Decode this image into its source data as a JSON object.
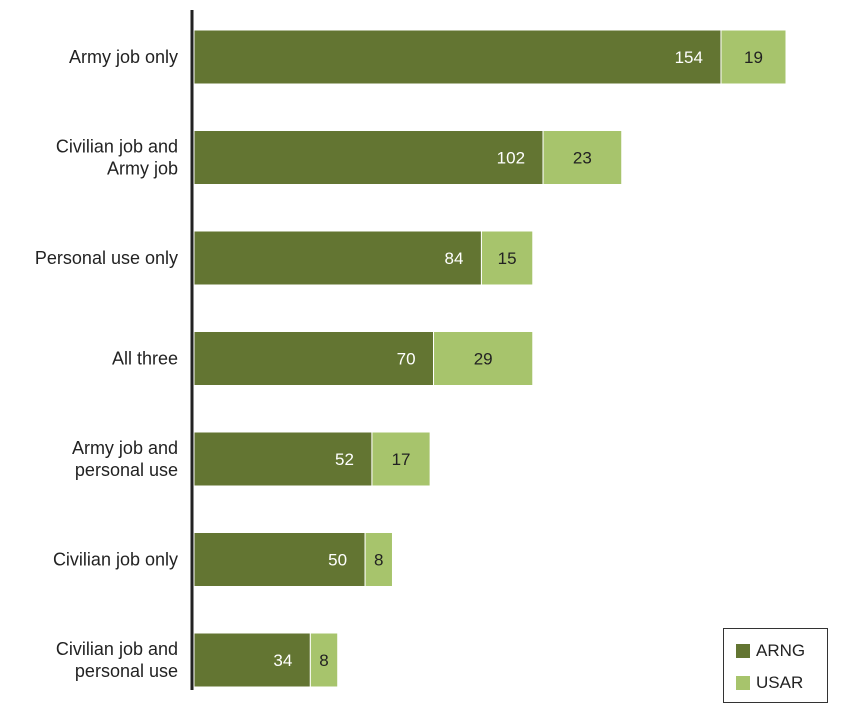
{
  "chart_data": {
    "type": "bar",
    "orientation": "horizontal",
    "stacked": true,
    "categories": [
      [
        "Army job only"
      ],
      [
        "Civilian job and",
        "Army job"
      ],
      [
        "Personal use only"
      ],
      [
        "All three"
      ],
      [
        "Army job and",
        "personal use"
      ],
      [
        "Civilian job only"
      ],
      [
        "Civilian job and",
        "personal use"
      ]
    ],
    "series": [
      {
        "name": "ARNG",
        "color": "#637532",
        "label_color": "#ffffff",
        "values": [
          154,
          102,
          84,
          70,
          52,
          50,
          34
        ]
      },
      {
        "name": "USAR",
        "color": "#a7c46c",
        "label_color": "#222222",
        "values": [
          19,
          23,
          15,
          29,
          17,
          8,
          8
        ]
      }
    ],
    "xlim": [
      0,
      173
    ],
    "grid": false,
    "legend_position": "bottom-right"
  }
}
